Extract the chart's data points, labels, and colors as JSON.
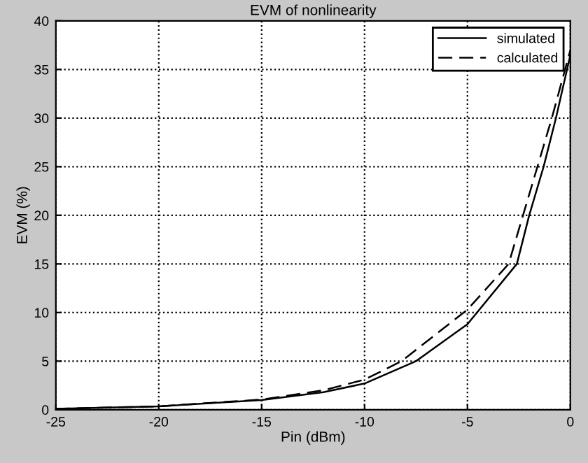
{
  "chart_data": {
    "type": "line",
    "title": "EVM of nonlinearity",
    "xlabel": "Pin (dBm)",
    "ylabel": "EVM (%)",
    "series": [
      {
        "name": "simulated",
        "color": "#000000",
        "line_style": "solid",
        "x": [
          -25,
          -20,
          -15,
          -12,
          -10,
          -7.5,
          -5,
          -2.6,
          -2.0,
          -1.3,
          -0.7,
          0
        ],
        "values": [
          0.1,
          0.35,
          1.0,
          1.8,
          2.7,
          5,
          8.8,
          15,
          20,
          25,
          30,
          36.5
        ]
      },
      {
        "name": "calculated",
        "color": "#000000",
        "line_style": "dashed",
        "x": [
          -25,
          -20,
          -15,
          -12,
          -10,
          -8.2,
          -5,
          -3.0,
          -2.3,
          -1.6,
          -0.9,
          0
        ],
        "values": [
          0.1,
          0.35,
          1.05,
          2.0,
          3.1,
          5,
          10.3,
          15,
          20,
          25,
          30,
          37
        ]
      }
    ],
    "xlim": [
      -25,
      0
    ],
    "ylim": [
      0,
      40
    ],
    "xticks": [
      -25,
      -20,
      -15,
      -10,
      -5,
      0
    ],
    "yticks": [
      0,
      5,
      10,
      15,
      20,
      25,
      30,
      35,
      40
    ],
    "grid": true,
    "legend": "top right",
    "marker": "none"
  }
}
